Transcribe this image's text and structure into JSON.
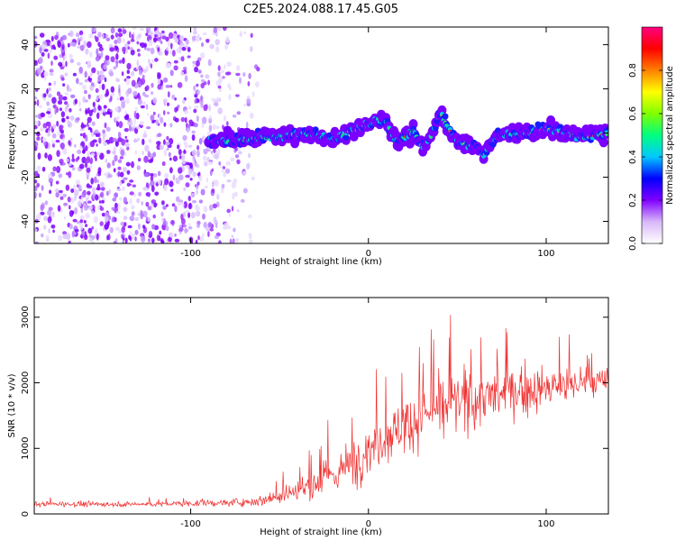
{
  "title": "C2E5.2024.088.17.45.G05",
  "chart_data": [
    {
      "type": "heatmap",
      "xlabel": "Height of straight line (km)",
      "ylabel": "Frequency (Hz)",
      "xlim": [
        -188,
        135
      ],
      "ylim": [
        -50,
        48
      ],
      "xticks": [
        -100,
        0,
        100
      ],
      "yticks": [
        -40,
        -20,
        0,
        20,
        40
      ],
      "colorbar": {
        "label": "Normalized spectral amplitude",
        "range": [
          0,
          1
        ],
        "ticks": [
          "0.0",
          "0.2",
          "0.4",
          "0.6",
          "0.8"
        ],
        "colors": [
          "#ffffff",
          "#d8b8f8",
          "#8000ff",
          "#0000ff",
          "#00c8ff",
          "#00ff80",
          "#80ff00",
          "#ffff00",
          "#ff8000",
          "#ff0000",
          "#ff0080"
        ]
      },
      "noise_region_x": [
        -188,
        -62
      ],
      "signal_track": {
        "x": [
          -90,
          -80,
          -70,
          -60,
          -50,
          -40,
          -30,
          -20,
          -10,
          0,
          5,
          10,
          15,
          20,
          25,
          30,
          35,
          40,
          45,
          50,
          55,
          60,
          65,
          70,
          75,
          80,
          90,
          100,
          110,
          120,
          130,
          135
        ],
        "frequency": [
          -3,
          -4,
          -3,
          -2,
          -2,
          0,
          -1,
          -3,
          1,
          4,
          6,
          5,
          -3,
          -2,
          1,
          -6,
          -2,
          10,
          2,
          -4,
          -5,
          -6,
          -10,
          -3,
          0,
          -1,
          0,
          2,
          0,
          -2,
          -1,
          0
        ]
      }
    },
    {
      "type": "line",
      "xlabel": "Height of straight line (km)",
      "ylabel": "SNR (10 * v/v)",
      "xlim": [
        -188,
        135
      ],
      "ylim": [
        0,
        3300
      ],
      "xticks": [
        -100,
        0,
        100
      ],
      "yticks": [
        0,
        1000,
        2000,
        3000
      ],
      "color": "#f03030",
      "envelope": {
        "x": [
          -188,
          -120,
          -80,
          -60,
          -50,
          -40,
          -30,
          -20,
          -10,
          0,
          10,
          20,
          30,
          40,
          50,
          60,
          70,
          80,
          90,
          100,
          110,
          120,
          135
        ],
        "mean": [
          150,
          150,
          170,
          200,
          300,
          350,
          450,
          600,
          750,
          1000,
          1200,
          1350,
          1500,
          1600,
          1700,
          1750,
          1800,
          1850,
          1900,
          1900,
          1950,
          2000,
          2000
        ],
        "spread": [
          60,
          60,
          80,
          120,
          250,
          300,
          400,
          500,
          550,
          600,
          650,
          650,
          650,
          700,
          700,
          700,
          650,
          600,
          550,
          500,
          450,
          400,
          350
        ]
      }
    }
  ]
}
